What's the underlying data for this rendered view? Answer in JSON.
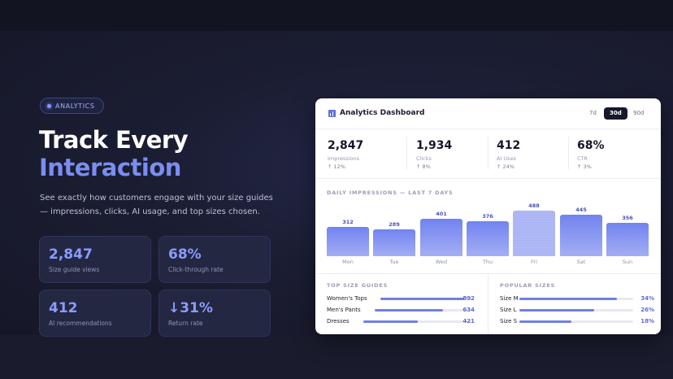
{
  "hero": {
    "badge": "ANALYTICS",
    "title_line1": "Track Every",
    "title_line2": "Interaction",
    "lede": "See exactly how customers engage with your size guides — impressions, clicks, AI usage, and top sizes chosen."
  },
  "stat_cards": [
    {
      "value": "2,847",
      "label": "Size guide views"
    },
    {
      "value": "68%",
      "label": "Click-through rate"
    },
    {
      "value": "412",
      "label": "AI recommendations"
    },
    {
      "value": "↓31%",
      "label": "Return rate"
    }
  ],
  "dashboard": {
    "title": "Analytics Dashboard",
    "icon": "bar-chart-icon",
    "ranges": [
      "7d",
      "30d",
      "90d"
    ],
    "active_range": "30d",
    "kpis": [
      {
        "value": "2,847",
        "label": "Impressions",
        "delta": "↑ 12%"
      },
      {
        "value": "1,934",
        "label": "Clicks",
        "delta": "↑ 8%"
      },
      {
        "value": "412",
        "label": "AI Uses",
        "delta": "↑ 24%"
      },
      {
        "value": "68%",
        "label": "CTR",
        "delta": "↑ 3%"
      }
    ],
    "chart_title": "DAILY IMPRESSIONS — LAST 7 DAYS",
    "top_guides_title": "TOP SIZE GUIDES",
    "top_guides": [
      {
        "name": "Women's Tops",
        "value": "892",
        "share": 0.92
      },
      {
        "name": "Men's Pants",
        "value": "634",
        "share": 0.71
      },
      {
        "name": "Dresses",
        "value": "421",
        "share": 0.5
      }
    ],
    "popular_title": "POPULAR SIZES",
    "popular_sizes": [
      {
        "name": "Size M",
        "value": "34%",
        "share": 0.86
      },
      {
        "name": "Size L",
        "value": "26%",
        "share": 0.66
      },
      {
        "name": "Size S",
        "value": "18%",
        "share": 0.46
      }
    ]
  },
  "chart_data": {
    "type": "bar",
    "categories": [
      "Mon",
      "Tue",
      "Wed",
      "Thu",
      "Fri",
      "Sat",
      "Sun"
    ],
    "values": [
      312,
      289,
      401,
      376,
      488,
      445,
      356
    ],
    "title": "DAILY IMPRESSIONS — LAST 7 DAYS",
    "xlabel": "",
    "ylabel": "",
    "ylim": [
      0,
      500
    ],
    "grid": false,
    "highlight_category": "Fri"
  },
  "colors": {
    "accent": "#7a8ef0",
    "bar": "#7283f0",
    "panel": "#ffffff",
    "background": "#181a2b"
  }
}
